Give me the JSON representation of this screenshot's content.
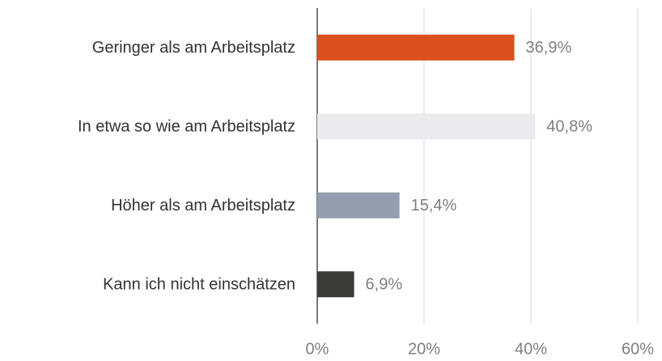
{
  "chart_data": {
    "type": "barh",
    "categories": [
      "Geringer als am Arbeitsplatz",
      "In etwa so wie am Arbeitsplatz",
      "Höher als am Arbeitsplatz",
      "Kann ich nicht einschätzen"
    ],
    "values": [
      36.9,
      40.8,
      15.4,
      6.9
    ],
    "value_labels": [
      "36,9%",
      "40,8%",
      "15,4%",
      "6,9%"
    ],
    "colors": [
      "#d9501e",
      "#ebebef",
      "#959eae",
      "#3a3a37"
    ],
    "xlim": [
      0,
      60
    ],
    "xticks": [
      {
        "value": 0,
        "label": "0%"
      },
      {
        "value": 20,
        "label": "20%"
      },
      {
        "value": 40,
        "label": "40%"
      },
      {
        "value": 60,
        "label": "60%"
      }
    ],
    "grid": true
  }
}
